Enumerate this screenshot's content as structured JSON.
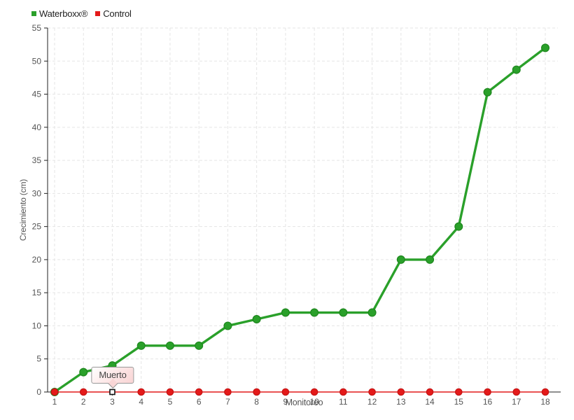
{
  "chart_data": {
    "type": "line",
    "x": [
      1,
      2,
      3,
      4,
      5,
      6,
      7,
      8,
      9,
      10,
      11,
      12,
      13,
      14,
      15,
      16,
      17,
      18
    ],
    "x_tick_labels": [
      "1",
      "2",
      "3",
      "4",
      "5",
      "6",
      "7",
      "8",
      "9",
      "10",
      "11",
      "12",
      "13",
      "14",
      "15",
      "16",
      "17",
      "18"
    ],
    "y_tick_labels": [
      "0",
      "5",
      "10",
      "15",
      "20",
      "25",
      "30",
      "35",
      "40",
      "45",
      "50",
      "55"
    ],
    "y_ticks": [
      0,
      5,
      10,
      15,
      20,
      25,
      30,
      35,
      40,
      45,
      50,
      55
    ],
    "xlabel": "Monitoreo",
    "ylabel": "Crecimiento (cm)",
    "ylim": [
      0,
      55
    ],
    "grid": true,
    "legend_position": "top-left",
    "series": [
      {
        "name": "Waterboxx®",
        "color": "#2aa02a",
        "marker_stroke": "#1d871d",
        "line_width": 3.4,
        "marker_radius": 5.4,
        "values": [
          0,
          3,
          4,
          7,
          7,
          7,
          10,
          11,
          12,
          12,
          12,
          12,
          20,
          20,
          25,
          45.3,
          48.7,
          52
        ]
      },
      {
        "name": "Control",
        "color": "#e41a1a",
        "marker_stroke": "#c51313",
        "line_width": 1.6,
        "marker_radius": 4.7,
        "values": [
          0,
          0,
          0,
          0,
          0,
          0,
          0,
          0,
          0,
          0,
          0,
          0,
          0,
          0,
          0,
          0,
          0,
          0
        ]
      }
    ],
    "annotation": {
      "text": "Muerto",
      "series": "Control",
      "x": 3,
      "y": 0,
      "selected_marker": "white-square-black-border"
    },
    "colors": {
      "grid": "#e5e5e5",
      "axis": "#222222",
      "tick_label": "#555555",
      "tooltip_border": "#999999",
      "tooltip_bg_from": "#ffffff",
      "tooltip_bg_to": "#f9d4d4"
    }
  }
}
